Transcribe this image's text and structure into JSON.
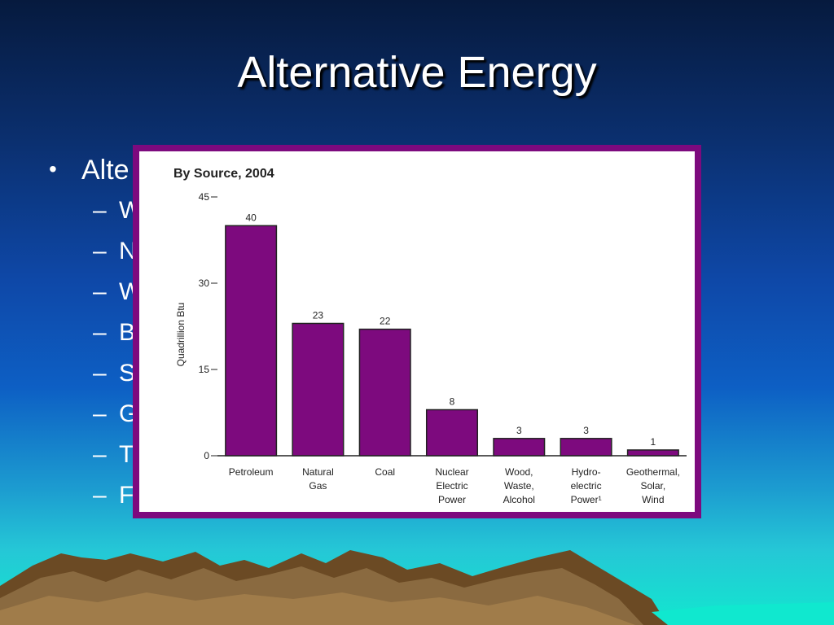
{
  "slide": {
    "title": "Alternative Energy",
    "bullet": "Alte",
    "sub_bullets": [
      "W",
      "N",
      "W",
      "B",
      "S",
      "G",
      "T",
      "F"
    ]
  },
  "colors": {
    "bar": "#7d0a7e",
    "frame": "#7d0a7e"
  },
  "chart_data": {
    "type": "bar",
    "title": "By Source, 2004",
    "ylabel": "Quadrillion Btu",
    "xlabel": "",
    "ylim": [
      0,
      45
    ],
    "yticks": [
      0,
      15,
      30,
      45
    ],
    "categories": [
      [
        "Petroleum"
      ],
      [
        "Natural",
        "Gas"
      ],
      [
        "Coal"
      ],
      [
        "Nuclear",
        "Electric",
        "Power"
      ],
      [
        "Wood,",
        "Waste,",
        "Alcohol"
      ],
      [
        "Hydro-",
        "electric",
        "Power¹"
      ],
      [
        "Geothermal,",
        "Solar,",
        "Wind"
      ]
    ],
    "values": [
      40,
      23,
      22,
      8,
      3,
      3,
      1
    ],
    "value_labels": [
      "40",
      "23",
      "22",
      "8",
      "3",
      "3",
      "1"
    ]
  }
}
